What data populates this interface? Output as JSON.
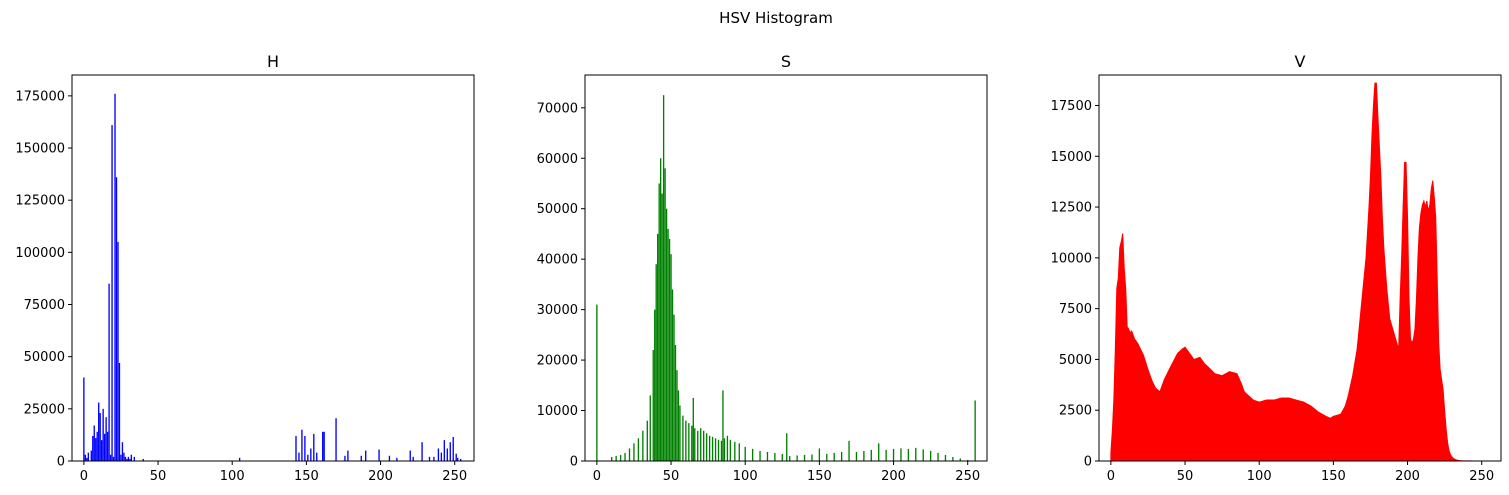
{
  "suptitle": "HSV Histogram",
  "chart_data": [
    {
      "type": "bar",
      "title": "H",
      "color": "#0000ff",
      "xlim": [
        -8,
        263
      ],
      "ylim": [
        0,
        185000
      ],
      "xticks": [
        0,
        50,
        100,
        150,
        200,
        250
      ],
      "yticks": [
        0,
        25000,
        50000,
        75000,
        100000,
        125000,
        150000,
        175000
      ],
      "x": [
        0,
        1,
        2,
        3,
        5,
        6,
        7,
        8,
        9,
        10,
        11,
        12,
        13,
        14,
        15,
        16,
        17,
        18,
        19,
        20,
        21,
        22,
        23,
        24,
        25,
        26,
        27,
        28,
        29,
        30,
        31,
        32,
        34,
        40,
        105,
        143,
        145,
        147,
        149,
        151,
        153,
        155,
        157,
        161,
        162,
        170,
        176,
        178,
        187,
        190,
        199,
        206,
        211,
        220,
        222,
        228,
        233,
        236,
        239,
        241,
        243,
        245,
        247,
        249,
        251,
        252,
        254
      ],
      "values": [
        40000,
        3000,
        1500,
        4000,
        5000,
        12000,
        17000,
        11000,
        14000,
        28000,
        23000,
        10000,
        25000,
        13000,
        21000,
        14000,
        85000,
        3000,
        161000,
        2000,
        176000,
        136000,
        105000,
        47000,
        3000,
        9000,
        4000,
        2000,
        1000,
        2000,
        1000,
        3000,
        2000,
        1000,
        1500,
        12000,
        4000,
        15000,
        12000,
        3000,
        6000,
        13000,
        4000,
        14000,
        14000,
        20500,
        2500,
        5000,
        2500,
        5000,
        5500,
        2500,
        1500,
        5000,
        2000,
        9000,
        2000,
        2000,
        6000,
        4000,
        10000,
        6000,
        9000,
        11500,
        3500,
        1500,
        1000
      ]
    },
    {
      "type": "bar",
      "title": "S",
      "color": "#008000",
      "xlim": [
        -8,
        263
      ],
      "ylim": [
        0,
        76500
      ],
      "xticks": [
        0,
        50,
        100,
        150,
        200,
        250
      ],
      "yticks": [
        0,
        10000,
        20000,
        30000,
        40000,
        50000,
        60000,
        70000
      ],
      "x": [
        0,
        10,
        13,
        16,
        19,
        22,
        25,
        28,
        31,
        34,
        36,
        38,
        39,
        40,
        41,
        42,
        43,
        44,
        45,
        46,
        47,
        48,
        49,
        50,
        51,
        52,
        53,
        54,
        55,
        56,
        58,
        60,
        62,
        64,
        65,
        66,
        68,
        70,
        72,
        74,
        76,
        78,
        80,
        82,
        84,
        85,
        86,
        88,
        90,
        93,
        96,
        100,
        105,
        110,
        115,
        120,
        125,
        128,
        130,
        135,
        140,
        145,
        150,
        155,
        160,
        165,
        170,
        175,
        180,
        185,
        190,
        195,
        200,
        205,
        210,
        215,
        220,
        225,
        230,
        235,
        240,
        245,
        250,
        255
      ],
      "values": [
        31000,
        800,
        1000,
        1200,
        1600,
        2500,
        3500,
        4500,
        6000,
        8000,
        13000,
        22000,
        30000,
        39000,
        45000,
        55000,
        60000,
        53000,
        72500,
        58000,
        50000,
        46000,
        44000,
        41000,
        34000,
        29000,
        23000,
        18000,
        14000,
        11000,
        9000,
        8000,
        7500,
        7000,
        12500,
        6500,
        6000,
        6500,
        6000,
        5500,
        5000,
        4800,
        4500,
        4200,
        4000,
        14000,
        4500,
        5000,
        4200,
        3800,
        3500,
        2800,
        2400,
        2000,
        1800,
        1600,
        1400,
        5500,
        1000,
        1100,
        1200,
        1300,
        2500,
        1400,
        1600,
        1800,
        4000,
        1800,
        2000,
        2200,
        3500,
        2200,
        2400,
        2500,
        2400,
        2600,
        2300,
        2000,
        1600,
        1200,
        800,
        500,
        200,
        12000
      ]
    },
    {
      "type": "area",
      "title": "V",
      "color": "#ff0000",
      "xlim": [
        -8,
        263
      ],
      "ylim": [
        0,
        19000
      ],
      "xticks": [
        0,
        50,
        100,
        150,
        200,
        250
      ],
      "yticks": [
        0,
        2500,
        5000,
        7500,
        10000,
        12500,
        15000,
        17500
      ],
      "x": [
        0,
        1,
        2,
        3,
        4,
        5,
        6,
        7,
        8,
        9,
        10,
        11,
        12,
        13,
        14,
        16,
        18,
        20,
        22,
        25,
        28,
        30,
        33,
        36,
        40,
        45,
        48,
        50,
        53,
        56,
        60,
        63,
        66,
        70,
        75,
        80,
        85,
        88,
        90,
        93,
        96,
        100,
        105,
        110,
        115,
        120,
        125,
        130,
        135,
        140,
        145,
        148,
        150,
        155,
        158,
        160,
        163,
        166,
        168,
        170,
        172,
        174,
        175,
        176,
        177,
        178,
        179,
        180,
        181,
        182,
        183,
        184,
        185,
        186,
        188,
        190,
        192,
        194,
        195,
        196,
        197,
        198,
        199,
        200,
        201,
        202,
        203,
        204,
        205,
        206,
        207,
        208,
        209,
        210,
        211,
        212,
        213,
        214,
        215,
        216,
        217,
        218,
        219,
        220,
        221,
        222,
        223,
        224,
        225,
        226,
        227,
        228,
        229,
        230,
        231,
        232,
        233,
        234,
        235,
        237,
        240,
        245,
        250,
        255
      ],
      "values": [
        400,
        1500,
        3000,
        5500,
        8500,
        9000,
        10500,
        10800,
        11200,
        9500,
        8500,
        6600,
        6500,
        6300,
        6400,
        6000,
        5800,
        5500,
        5200,
        4500,
        3900,
        3600,
        3400,
        4000,
        4600,
        5300,
        5500,
        5600,
        5300,
        5000,
        5100,
        4800,
        4600,
        4300,
        4200,
        4400,
        4300,
        3800,
        3400,
        3200,
        3000,
        2900,
        3000,
        3000,
        3100,
        3100,
        3000,
        2900,
        2700,
        2400,
        2200,
        2100,
        2200,
        2300,
        2700,
        3200,
        4200,
        5500,
        7000,
        8500,
        10000,
        12500,
        14000,
        16000,
        17500,
        18600,
        18600,
        17000,
        15500,
        14000,
        12000,
        10500,
        9500,
        8500,
        7000,
        6500,
        6000,
        5500,
        8000,
        10000,
        12500,
        14700,
        14700,
        12000,
        8000,
        6000,
        5800,
        6000,
        6500,
        8000,
        10000,
        11500,
        12200,
        12600,
        12800,
        12500,
        12800,
        12300,
        12600,
        13400,
        13800,
        13000,
        12000,
        9000,
        5800,
        4500,
        4000,
        3500,
        2500,
        1600,
        900,
        500,
        300,
        200,
        120,
        80,
        50,
        30,
        20,
        10,
        5,
        0,
        0,
        0
      ]
    }
  ]
}
